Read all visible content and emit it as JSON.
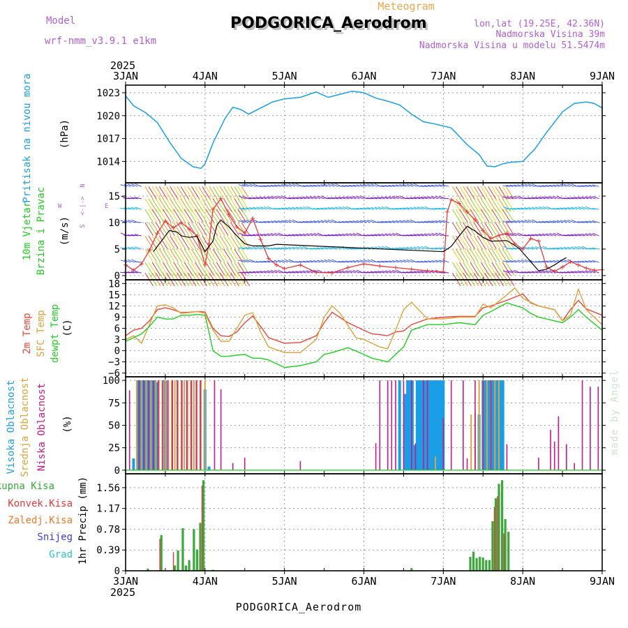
{
  "header": {
    "model_label": "Model",
    "model_name": "wrf-nmm_v3.9.1 e1km",
    "chart_title": "Meteogram",
    "station": "PODGORICA_Aerodrom",
    "lonlat": "lon,lat (19.25E, 42.36N)",
    "elevation": "Nadmorska Visina 39m",
    "model_elevation": "Nadmorska Visina u modelu 51.5474m",
    "year": "2025",
    "footer_station": "PODGORICA_Aerodrom",
    "credit": "made by Angel"
  },
  "colors": {
    "pressure": "#1a9fe6",
    "temp2m": "#e8473a",
    "sfc_temp": "#dca33a",
    "dewpoint": "#1fcf1f",
    "wind_speed": "#e83a3a",
    "wind_mean": "#000000",
    "high_cloud": "#1a9fe6",
    "mid_cloud": "#dca33a",
    "low_cloud": "#c6198a",
    "total_precip": "#3aa83a",
    "conv_precip": "#e83a3a",
    "frozen_precip": "#f07a2a",
    "snow": "#3a3ae8",
    "graupel": "#2ac6c6",
    "label_purple": "#b15fd6",
    "label_orange": "#e6a850"
  },
  "chart_data": [
    {
      "id": "pressure",
      "type": "line",
      "ylabel": "(hPa)",
      "side_label": "Pritisak na nivou mora",
      "x_ticks": [
        "3JAN",
        "4JAN",
        "5JAN",
        "6JAN",
        "7JAN",
        "8JAN",
        "9JAN"
      ],
      "ylim": [
        1011.2,
        1024.0
      ],
      "yticks": [
        1014,
        1017,
        1020,
        1023
      ],
      "grid": true,
      "series": [
        {
          "x": [
            0.0,
            0.1,
            0.25,
            0.4,
            0.55,
            0.7,
            0.85,
            0.95,
            1.0,
            1.1,
            1.25,
            1.35,
            1.45,
            1.55,
            1.7,
            1.85,
            2.0,
            2.2,
            2.4,
            2.55,
            2.7,
            2.85,
            3.0,
            3.15,
            3.3,
            3.45,
            3.6,
            3.75,
            3.9,
            4.1,
            4.3,
            4.45,
            4.55,
            4.65,
            4.75,
            4.85,
            5.0,
            5.15,
            5.3,
            5.5,
            5.65,
            5.8,
            5.9,
            6.0
          ],
          "y": [
            1022.6,
            1021.3,
            1020.4,
            1019.1,
            1016.6,
            1014.4,
            1013.3,
            1013.1,
            1013.7,
            1016.4,
            1019.6,
            1021.1,
            1020.8,
            1020.2,
            1021.0,
            1021.8,
            1022.2,
            1022.4,
            1023.1,
            1022.4,
            1022.8,
            1023.2,
            1023.0,
            1022.3,
            1021.9,
            1021.4,
            1020.2,
            1019.2,
            1018.9,
            1018.4,
            1016.2,
            1014.9,
            1013.4,
            1013.3,
            1013.7,
            1013.9,
            1014.0,
            1015.6,
            1017.8,
            1020.5,
            1021.6,
            1021.8,
            1021.6,
            1021.0
          ]
        }
      ]
    },
    {
      "id": "wind",
      "type": "line",
      "ylabel": "(m/s)",
      "side_label_1": "10m Vjetar",
      "side_label_2": "Brzina i Pravac",
      "compass_top": "N",
      "compass_bottom": "S",
      "compass_left": "W",
      "compass_right": "E",
      "ylim": [
        -0.8,
        17.5
      ],
      "yticks": [
        0,
        5,
        10,
        15
      ],
      "grid": true,
      "series": [
        {
          "name": "speed",
          "x": [
            0.0,
            0.1,
            0.2,
            0.3,
            0.4,
            0.5,
            0.6,
            0.7,
            0.8,
            0.9,
            1.0,
            1.05,
            1.1,
            1.2,
            1.3,
            1.4,
            1.5,
            1.6,
            1.7,
            1.8,
            1.9,
            2.0,
            2.2,
            2.4,
            2.6,
            2.8,
            3.0,
            3.2,
            3.4,
            3.6,
            3.8,
            4.0,
            4.05,
            4.1,
            4.2,
            4.3,
            4.4,
            4.5,
            4.6,
            4.7,
            4.8,
            4.9,
            5.0,
            5.1,
            5.2,
            5.3,
            5.4,
            5.5,
            5.6,
            5.7,
            5.8,
            5.9,
            6.0
          ],
          "y": [
            2.0,
            1.0,
            2.2,
            4.8,
            8.0,
            10.3,
            9.0,
            10.0,
            8.8,
            7.5,
            2.0,
            6.0,
            12.5,
            14.5,
            11.5,
            9.2,
            8.0,
            10.8,
            6.8,
            3.2,
            2.0,
            1.3,
            2.0,
            0.6,
            0.5,
            1.5,
            2.2,
            1.8,
            1.5,
            1.2,
            0.9,
            0.7,
            12.0,
            14.3,
            13.6,
            12.0,
            10.5,
            8.5,
            7.0,
            7.6,
            8.0,
            6.0,
            5.0,
            7.0,
            6.5,
            1.6,
            0.8,
            1.6,
            2.6,
            2.0,
            1.4,
            1.0,
            1.1
          ]
        },
        {
          "name": "mean",
          "x": [
            0.35,
            0.45,
            0.55,
            0.65,
            0.7,
            0.8,
            0.9,
            1.0,
            1.1,
            1.15,
            1.2,
            1.3,
            1.4,
            1.5,
            1.6,
            1.8,
            1.9,
            4.0,
            4.1,
            4.2,
            4.3,
            4.4,
            4.5,
            4.6,
            4.8,
            4.95,
            5.2,
            5.3,
            5.4,
            5.5,
            5.55
          ],
          "y": [
            4.5,
            6.5,
            8.5,
            8.2,
            7.5,
            7.2,
            7.4,
            4.5,
            6.5,
            9.5,
            10.5,
            9.2,
            7.5,
            6.0,
            5.6,
            5.6,
            5.9,
            4.5,
            5.5,
            7.5,
            9.3,
            8.4,
            7.2,
            6.5,
            6.6,
            5.2,
            0.9,
            1.2,
            2.0,
            3.0,
            3.4
          ]
        }
      ]
    },
    {
      "id": "temperature",
      "type": "line",
      "ylabel": "(C)",
      "side_label_1": "2m Temp",
      "side_label_2": "SFC Temp",
      "side_label_3": "dewpt Temp",
      "ylim": [
        -7,
        19
      ],
      "yticks": [
        -6,
        -3,
        0,
        3,
        6,
        9,
        12,
        15,
        18
      ],
      "grid": true,
      "series": [
        {
          "name": "2m Temp",
          "x": [
            0.0,
            0.1,
            0.2,
            0.3,
            0.4,
            0.5,
            0.6,
            0.7,
            0.8,
            0.9,
            1.0,
            1.1,
            1.2,
            1.3,
            1.4,
            1.5,
            1.6,
            1.7,
            1.8,
            2.0,
            2.2,
            2.4,
            2.5,
            2.6,
            2.8,
            3.0,
            3.1,
            3.2,
            3.3,
            3.4,
            3.5,
            3.6,
            3.8,
            4.0,
            4.2,
            4.4,
            4.5,
            4.6,
            4.8,
            5.0,
            5.1,
            5.2,
            5.4,
            5.5,
            5.6,
            5.7,
            5.8,
            6.0
          ],
          "y": [
            4.0,
            5.5,
            6.0,
            8.0,
            11.0,
            11.5,
            11.0,
            10.2,
            10.3,
            10.5,
            10.4,
            6.0,
            4.0,
            3.8,
            5.0,
            7.5,
            9.3,
            6.5,
            3.5,
            2.0,
            2.2,
            4.0,
            7.5,
            10.3,
            7.5,
            5.5,
            4.5,
            4.3,
            4.0,
            5.0,
            5.3,
            7.0,
            8.5,
            9.0,
            9.2,
            9.2,
            11.5,
            12.0,
            13.5,
            15.2,
            12.8,
            12.0,
            11.0,
            8.0,
            11.0,
            13.5,
            11.2,
            9.5
          ]
        },
        {
          "name": "SFC Temp",
          "x": [
            0.0,
            0.1,
            0.2,
            0.3,
            0.4,
            0.5,
            0.6,
            0.7,
            0.8,
            0.9,
            1.0,
            1.1,
            1.2,
            1.3,
            1.4,
            1.5,
            1.6,
            1.7,
            1.8,
            2.0,
            2.2,
            2.4,
            2.5,
            2.6,
            2.7,
            2.9,
            3.0,
            3.1,
            3.2,
            3.3,
            3.4,
            3.5,
            3.6,
            3.8,
            4.0,
            4.2,
            4.4,
            4.5,
            4.6,
            4.8,
            4.9,
            5.0,
            5.1,
            5.2,
            5.4,
            5.5,
            5.6,
            5.7,
            5.8,
            5.9,
            6.0
          ],
          "y": [
            3.0,
            4.0,
            2.0,
            7.0,
            12.0,
            12.3,
            11.5,
            10.0,
            10.2,
            10.5,
            10.0,
            5.5,
            2.5,
            2.5,
            6.0,
            9.5,
            10.2,
            5.0,
            1.0,
            -0.5,
            -0.5,
            3.0,
            9.0,
            12.0,
            10.0,
            3.5,
            3.0,
            2.0,
            1.0,
            0.5,
            5.5,
            11.0,
            13.0,
            8.5,
            8.5,
            9.0,
            9.0,
            12.5,
            11.5,
            15.0,
            16.8,
            14.0,
            13.0,
            12.0,
            11.0,
            8.0,
            9.5,
            16.5,
            11.0,
            9.0,
            7.0
          ]
        },
        {
          "name": "dewpt Temp",
          "x": [
            0.0,
            0.2,
            0.3,
            0.4,
            0.5,
            0.6,
            0.7,
            0.8,
            0.9,
            1.0,
            1.05,
            1.1,
            1.2,
            1.3,
            1.4,
            1.5,
            1.6,
            1.7,
            1.8,
            2.0,
            2.2,
            2.4,
            2.5,
            2.6,
            2.8,
            3.0,
            3.1,
            3.2,
            3.3,
            3.4,
            3.5,
            3.6,
            3.8,
            4.0,
            4.2,
            4.4,
            4.5,
            4.6,
            4.8,
            5.0,
            5.1,
            5.2,
            5.4,
            5.5,
            5.6,
            5.7,
            5.8,
            6.0
          ],
          "y": [
            2.5,
            4.5,
            6.5,
            9.0,
            8.5,
            8.5,
            9.5,
            9.5,
            9.7,
            9.5,
            5.0,
            0.0,
            -1.5,
            -1.5,
            -1.2,
            -1.0,
            -2.0,
            -2.0,
            -2.5,
            -4.5,
            -4.0,
            -3.0,
            -1.0,
            -0.5,
            0.8,
            -1.0,
            -2.0,
            -2.5,
            -3.0,
            -1.0,
            1.0,
            5.5,
            7.0,
            7.0,
            7.5,
            7.0,
            9.5,
            10.5,
            12.8,
            11.5,
            10.0,
            9.0,
            8.0,
            7.5,
            9.0,
            11.0,
            9.0,
            5.5
          ]
        }
      ]
    },
    {
      "id": "cloud",
      "type": "bar",
      "ylabel": "(%)",
      "side_label_1": "Visoka Oblacnost",
      "side_label_2": "Srednja Oblacnost",
      "side_label_3": "Niska Oblacnost",
      "ylim": [
        -4,
        104
      ],
      "yticks": [
        0,
        25,
        50,
        75,
        100
      ],
      "grid": true,
      "series": [
        {
          "name": "Visoka Oblacnost",
          "x": [
            0.1,
            0.16,
            0.19,
            0.22,
            0.25,
            0.28,
            0.31,
            0.34,
            0.37,
            0.4,
            0.5,
            1.0,
            1.05,
            3.45,
            3.52,
            3.55,
            3.58,
            3.61,
            3.64,
            3.67,
            3.7,
            3.73,
            3.76,
            3.79,
            3.82,
            3.85,
            3.88,
            3.91,
            3.94,
            3.97,
            4.0,
            4.45,
            4.5,
            4.52,
            4.55,
            4.58,
            4.6,
            4.62,
            4.65,
            4.68,
            4.7,
            4.72,
            4.75
          ],
          "y": [
            13,
            100,
            100,
            100,
            100,
            100,
            100,
            100,
            100,
            98,
            100,
            90,
            4,
            100,
            85,
            100,
            100,
            100,
            28,
            100,
            100,
            100,
            100,
            100,
            100,
            100,
            100,
            100,
            100,
            100,
            100,
            62,
            100,
            100,
            100,
            100,
            100,
            100,
            100,
            100,
            100,
            100,
            100
          ]
        },
        {
          "name": "Srednja Oblacnost",
          "x": [
            0.14,
            0.2,
            0.26,
            0.32,
            0.38,
            0.42,
            0.46,
            0.5,
            0.54,
            0.58,
            0.62,
            0.66,
            0.7,
            0.74,
            0.78,
            0.82,
            0.86,
            0.9,
            0.95,
            1.0,
            3.9,
            4.35,
            4.4,
            4.45,
            4.5,
            4.55,
            4.6,
            4.65,
            4.7
          ],
          "y": [
            100,
            100,
            100,
            100,
            100,
            100,
            100,
            100,
            100,
            100,
            100,
            100,
            100,
            100,
            100,
            100,
            100,
            100,
            100,
            100,
            15,
            62,
            64,
            100,
            100,
            100,
            100,
            100,
            100
          ]
        },
        {
          "name": "Niska Oblacnost",
          "x": [
            0.05,
            0.17,
            0.23,
            0.29,
            0.35,
            0.41,
            0.47,
            0.53,
            0.59,
            0.65,
            0.71,
            0.77,
            0.83,
            0.89,
            0.94,
            1.12,
            1.2,
            1.35,
            1.5,
            2.2,
            3.15,
            3.2,
            3.3,
            3.35,
            3.4,
            3.5,
            3.6,
            3.65,
            3.75,
            3.8,
            4.0,
            4.1,
            4.25,
            4.3,
            4.4,
            4.5,
            4.6,
            4.8,
            5.2,
            5.35,
            5.4,
            5.45,
            5.55,
            5.65,
            5.75,
            5.85,
            5.95
          ],
          "y": [
            89,
            100,
            100,
            100,
            100,
            100,
            100,
            100,
            100,
            100,
            100,
            100,
            100,
            100,
            100,
            100,
            90,
            8,
            14,
            10,
            30,
            100,
            100,
            100,
            100,
            100,
            100,
            30,
            100,
            100,
            58,
            100,
            100,
            13,
            100,
            100,
            100,
            29,
            14,
            45,
            32,
            60,
            29,
            8,
            100,
            93,
            93
          ]
        }
      ]
    },
    {
      "id": "precip",
      "type": "bar",
      "ylabel": "1hr Precip (mm)",
      "side_label_1": "Ukupna Kisa",
      "side_label_2": "Konvek.Kisa",
      "side_label_3": "Zaledj.Kisa",
      "side_label_4": "Snijeg",
      "side_label_5": "Grad",
      "x_ticks": [
        "3JAN",
        "4JAN",
        "5JAN",
        "6JAN",
        "7JAN",
        "8JAN",
        "9JAN"
      ],
      "ylim": [
        0,
        1.82
      ],
      "yticks": [
        0,
        0.39,
        0.78,
        1.17,
        1.56
      ],
      "grid": true,
      "series": [
        {
          "name": "Ukupna Kisa",
          "x": [
            0.28,
            0.45,
            0.62,
            0.66,
            0.72,
            0.76,
            0.8,
            0.86,
            0.9,
            0.94,
            0.98,
            1.1,
            3.6,
            4.34,
            4.38,
            4.42,
            4.46,
            4.5,
            4.54,
            4.58,
            4.62,
            4.66,
            4.7,
            4.74,
            4.78,
            4.82
          ],
          "y": [
            0.04,
            0.67,
            0.1,
            0.38,
            0.8,
            0.1,
            0.2,
            0.78,
            0.4,
            0.9,
            1.7,
            0.02,
            0.05,
            0.26,
            0.36,
            0.24,
            0.26,
            0.25,
            0.2,
            0.2,
            0.93,
            1.36,
            1.63,
            1.7,
            0.97,
            0.73
          ]
        },
        {
          "name": "Konvek.Kisa",
          "x": [
            0.45,
            0.62,
            0.98,
            4.66,
            4.7,
            4.78
          ],
          "y": [
            0.6,
            0.35,
            1.6,
            1.2,
            1.4,
            0.7
          ]
        }
      ]
    }
  ]
}
